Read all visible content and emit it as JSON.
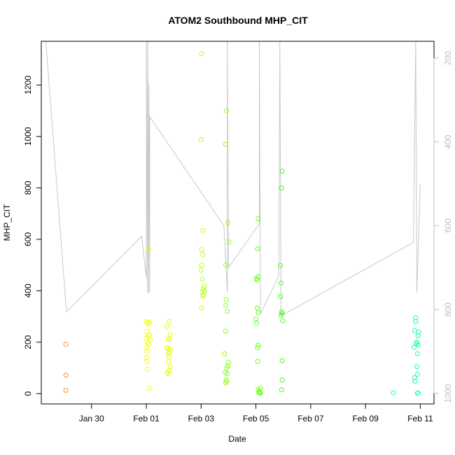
{
  "chart_data": {
    "type": "scatter",
    "title": "ATOM2 Southbound MHP_CIT",
    "xlabel": "Date",
    "ylabel": "MHP_CIT",
    "xlim": [
      "2024-01-28T04:00",
      "2024-02-11T12:00"
    ],
    "ylim": [
      -40,
      1370
    ],
    "x_ticks": [
      {
        "date": "2024-01-30",
        "label": "Jan 30"
      },
      {
        "date": "2024-02-01",
        "label": "Feb 01"
      },
      {
        "date": "2024-02-03",
        "label": "Feb 03"
      },
      {
        "date": "2024-02-05",
        "label": "Feb 05"
      },
      {
        "date": "2024-02-07",
        "label": "Feb 07"
      },
      {
        "date": "2024-02-09",
        "label": "Feb 09"
      },
      {
        "date": "2024-02-11",
        "label": "Feb 11"
      }
    ],
    "y_ticks": [
      0,
      200,
      400,
      600,
      800,
      1000,
      1200
    ],
    "y2": {
      "lim": [
        1025,
        160
      ],
      "ticks": [
        200,
        400,
        600,
        800,
        1000
      ],
      "color": "#bdbdbd"
    },
    "grid": false,
    "series": [
      {
        "color": "#ff8c1a",
        "points": [
          {
            "x": "2024-01-29T01:30",
            "y": 192
          },
          {
            "x": "2024-01-29T01:30",
            "y": 72
          },
          {
            "x": "2024-01-29T01:30",
            "y": 13
          }
        ]
      },
      {
        "color": "#f2ff00",
        "points": [
          {
            "x": "2024-02-01T02:00",
            "y": 562
          },
          {
            "x": "2024-02-01T00:00",
            "y": 280
          },
          {
            "x": "2024-02-01T01:00",
            "y": 275
          },
          {
            "x": "2024-02-01T02:00",
            "y": 270
          },
          {
            "x": "2024-02-01T03:00",
            "y": 278
          },
          {
            "x": "2024-02-01T00:30",
            "y": 242
          },
          {
            "x": "2024-02-01T02:30",
            "y": 230
          },
          {
            "x": "2024-02-01T01:30",
            "y": 225
          },
          {
            "x": "2024-02-01T00:00",
            "y": 215
          },
          {
            "x": "2024-02-01T03:30",
            "y": 210
          },
          {
            "x": "2024-02-01T01:00",
            "y": 198
          },
          {
            "x": "2024-02-01T02:00",
            "y": 192
          },
          {
            "x": "2024-02-01T00:00",
            "y": 178
          },
          {
            "x": "2024-02-01T00:30",
            "y": 165
          },
          {
            "x": "2024-02-01T00:00",
            "y": 140
          },
          {
            "x": "2024-02-01T00:30",
            "y": 125
          },
          {
            "x": "2024-02-01T01:00",
            "y": 95
          },
          {
            "x": "2024-02-01T03:00",
            "y": 20
          }
        ]
      },
      {
        "color": "#e6ff00",
        "points": [
          {
            "x": "2024-02-01T20:00",
            "y": 280
          },
          {
            "x": "2024-02-01T18:00",
            "y": 262
          },
          {
            "x": "2024-02-01T21:00",
            "y": 230
          },
          {
            "x": "2024-02-01T19:00",
            "y": 212
          },
          {
            "x": "2024-02-01T20:00",
            "y": 210
          },
          {
            "x": "2024-02-01T18:00",
            "y": 178
          },
          {
            "x": "2024-02-01T19:30",
            "y": 175
          },
          {
            "x": "2024-02-01T21:00",
            "y": 170
          },
          {
            "x": "2024-02-01T20:30",
            "y": 160
          },
          {
            "x": "2024-02-01T19:00",
            "y": 155
          },
          {
            "x": "2024-02-01T20:00",
            "y": 140
          },
          {
            "x": "2024-02-01T19:30",
            "y": 125
          },
          {
            "x": "2024-02-01T21:00",
            "y": 105
          },
          {
            "x": "2024-02-01T20:00",
            "y": 90
          },
          {
            "x": "2024-02-01T18:30",
            "y": 82
          },
          {
            "x": "2024-02-01T19:00",
            "y": 78
          }
        ]
      },
      {
        "color": "#b8ff1a",
        "points": [
          {
            "x": "2024-02-03T00:30",
            "y": 1322
          },
          {
            "x": "2024-02-03T00:00",
            "y": 988
          },
          {
            "x": "2024-02-03T01:30",
            "y": 635
          },
          {
            "x": "2024-02-03T00:30",
            "y": 560
          },
          {
            "x": "2024-02-03T01:30",
            "y": 540
          },
          {
            "x": "2024-02-03T00:30",
            "y": 500
          },
          {
            "x": "2024-02-03T00:00",
            "y": 480
          },
          {
            "x": "2024-02-03T01:00",
            "y": 445
          },
          {
            "x": "2024-02-03T03:00",
            "y": 418
          },
          {
            "x": "2024-02-03T02:00",
            "y": 408
          },
          {
            "x": "2024-02-03T03:00",
            "y": 400
          },
          {
            "x": "2024-02-03T01:00",
            "y": 395
          },
          {
            "x": "2024-02-03T02:00",
            "y": 385
          },
          {
            "x": "2024-02-03T01:30",
            "y": 378
          },
          {
            "x": "2024-02-03T00:30",
            "y": 333
          }
        ]
      },
      {
        "color": "#8cff1a",
        "points": [
          {
            "x": "2024-02-03T22:00",
            "y": 1100
          },
          {
            "x": "2024-02-03T21:30",
            "y": 970
          },
          {
            "x": "2024-02-03T23:30",
            "y": 665
          },
          {
            "x": "2024-02-04T00:30",
            "y": 590
          },
          {
            "x": "2024-02-03T21:30",
            "y": 500
          },
          {
            "x": "2024-02-03T22:00",
            "y": 365
          },
          {
            "x": "2024-02-03T21:30",
            "y": 343
          },
          {
            "x": "2024-02-03T23:00",
            "y": 320
          },
          {
            "x": "2024-02-03T21:30",
            "y": 243
          },
          {
            "x": "2024-02-03T20:30",
            "y": 155
          },
          {
            "x": "2024-02-04T00:00",
            "y": 122
          },
          {
            "x": "2024-02-03T23:30",
            "y": 108
          },
          {
            "x": "2024-02-03T22:30",
            "y": 100
          },
          {
            "x": "2024-02-03T21:00",
            "y": 82
          },
          {
            "x": "2024-02-03T23:00",
            "y": 78
          },
          {
            "x": "2024-02-03T22:00",
            "y": 53
          },
          {
            "x": "2024-02-03T22:30",
            "y": 48
          },
          {
            "x": "2024-02-03T21:30",
            "y": 42
          }
        ]
      },
      {
        "color": "#66ff1a",
        "points": [
          {
            "x": "2024-02-05T02:00",
            "y": 680
          },
          {
            "x": "2024-02-05T01:30",
            "y": 563
          },
          {
            "x": "2024-02-05T02:00",
            "y": 455
          },
          {
            "x": "2024-02-05T00:30",
            "y": 448
          },
          {
            "x": "2024-02-05T01:00",
            "y": 442
          },
          {
            "x": "2024-02-05T01:00",
            "y": 332
          },
          {
            "x": "2024-02-05T02:00",
            "y": 315
          },
          {
            "x": "2024-02-05T00:00",
            "y": 290
          },
          {
            "x": "2024-02-05T00:30",
            "y": 275
          },
          {
            "x": "2024-02-05T02:00",
            "y": 188
          },
          {
            "x": "2024-02-05T01:30",
            "y": 178
          },
          {
            "x": "2024-02-05T01:30",
            "y": 125
          },
          {
            "x": "2024-02-05T04:00",
            "y": 22
          },
          {
            "x": "2024-02-05T02:00",
            "y": 15
          },
          {
            "x": "2024-02-05T03:00",
            "y": 8
          },
          {
            "x": "2024-02-05T02:30",
            "y": 5
          },
          {
            "x": "2024-02-05T03:30",
            "y": 3
          },
          {
            "x": "2024-02-05T04:00",
            "y": 2
          }
        ]
      },
      {
        "color": "#40ff1a",
        "points": [
          {
            "x": "2024-02-05T23:00",
            "y": 865
          },
          {
            "x": "2024-02-05T22:30",
            "y": 800
          },
          {
            "x": "2024-02-05T21:30",
            "y": 498
          },
          {
            "x": "2024-02-05T22:00",
            "y": 430
          },
          {
            "x": "2024-02-05T21:30",
            "y": 378
          },
          {
            "x": "2024-02-05T22:30",
            "y": 318
          },
          {
            "x": "2024-02-05T23:00",
            "y": 312
          },
          {
            "x": "2024-02-05T22:00",
            "y": 305
          },
          {
            "x": "2024-02-05T23:30",
            "y": 283
          },
          {
            "x": "2024-02-05T23:00",
            "y": 128
          },
          {
            "x": "2024-02-05T23:00",
            "y": 53
          },
          {
            "x": "2024-02-05T22:30",
            "y": 15
          }
        ]
      },
      {
        "color": "#1aff9e",
        "points": [
          {
            "x": "2024-02-10T00:30",
            "y": 3
          },
          {
            "x": "2024-02-10T20:00",
            "y": 295
          },
          {
            "x": "2024-02-10T20:00",
            "y": 280
          },
          {
            "x": "2024-02-10T19:00",
            "y": 245
          },
          {
            "x": "2024-02-10T22:30",
            "y": 240
          },
          {
            "x": "2024-02-10T22:00",
            "y": 225
          },
          {
            "x": "2024-02-10T21:00",
            "y": 200
          },
          {
            "x": "2024-02-10T20:30",
            "y": 195
          },
          {
            "x": "2024-02-10T22:00",
            "y": 190
          },
          {
            "x": "2024-02-10T18:30",
            "y": 180
          },
          {
            "x": "2024-02-10T21:30",
            "y": 155
          },
          {
            "x": "2024-02-10T21:00",
            "y": 105
          },
          {
            "x": "2024-02-10T21:30",
            "y": 75
          },
          {
            "x": "2024-02-10T19:00",
            "y": 62
          },
          {
            "x": "2024-02-10T19:30",
            "y": 48
          },
          {
            "x": "2024-02-10T22:00",
            "y": 3
          },
          {
            "x": "2024-02-10T21:30",
            "y": 2
          }
        ]
      }
    ],
    "depth_trace": {
      "color": "#c8c8c8",
      "axis": "y2",
      "points": [
        {
          "x": "2024-01-28T08:00",
          "y": 160
        },
        {
          "x": "2024-01-29T02:00",
          "y": 805
        },
        {
          "x": "2024-01-31T20:00",
          "y": 625
        },
        {
          "x": "2024-02-01T00:00",
          "y": 725
        },
        {
          "x": "2024-02-01T00:10",
          "y": 160
        },
        {
          "x": "2024-02-01T01:00",
          "y": 760
        },
        {
          "x": "2024-02-01T01:20",
          "y": 160
        },
        {
          "x": "2024-02-01T02:00",
          "y": 760
        },
        {
          "x": "2024-02-01T02:20",
          "y": 260
        },
        {
          "x": "2024-02-01T03:00",
          "y": 760
        },
        {
          "x": "2024-02-01T03:00",
          "y": 340
        },
        {
          "x": "2024-02-03T20:00",
          "y": 600
        },
        {
          "x": "2024-02-03T23:00",
          "y": 760
        },
        {
          "x": "2024-02-03T23:00",
          "y": 160
        },
        {
          "x": "2024-02-04T00:00",
          "y": 700
        },
        {
          "x": "2024-02-05T03:00",
          "y": 595
        },
        {
          "x": "2024-02-05T03:00",
          "y": 160
        },
        {
          "x": "2024-02-05T04:00",
          "y": 810
        },
        {
          "x": "2024-02-05T20:00",
          "y": 720
        },
        {
          "x": "2024-02-05T21:00",
          "y": 160
        },
        {
          "x": "2024-02-05T22:00",
          "y": 815
        },
        {
          "x": "2024-02-10T18:00",
          "y": 640
        },
        {
          "x": "2024-02-10T20:00",
          "y": 160
        },
        {
          "x": "2024-02-10T21:00",
          "y": 760
        },
        {
          "x": "2024-02-11T00:00",
          "y": 500
        }
      ]
    }
  }
}
